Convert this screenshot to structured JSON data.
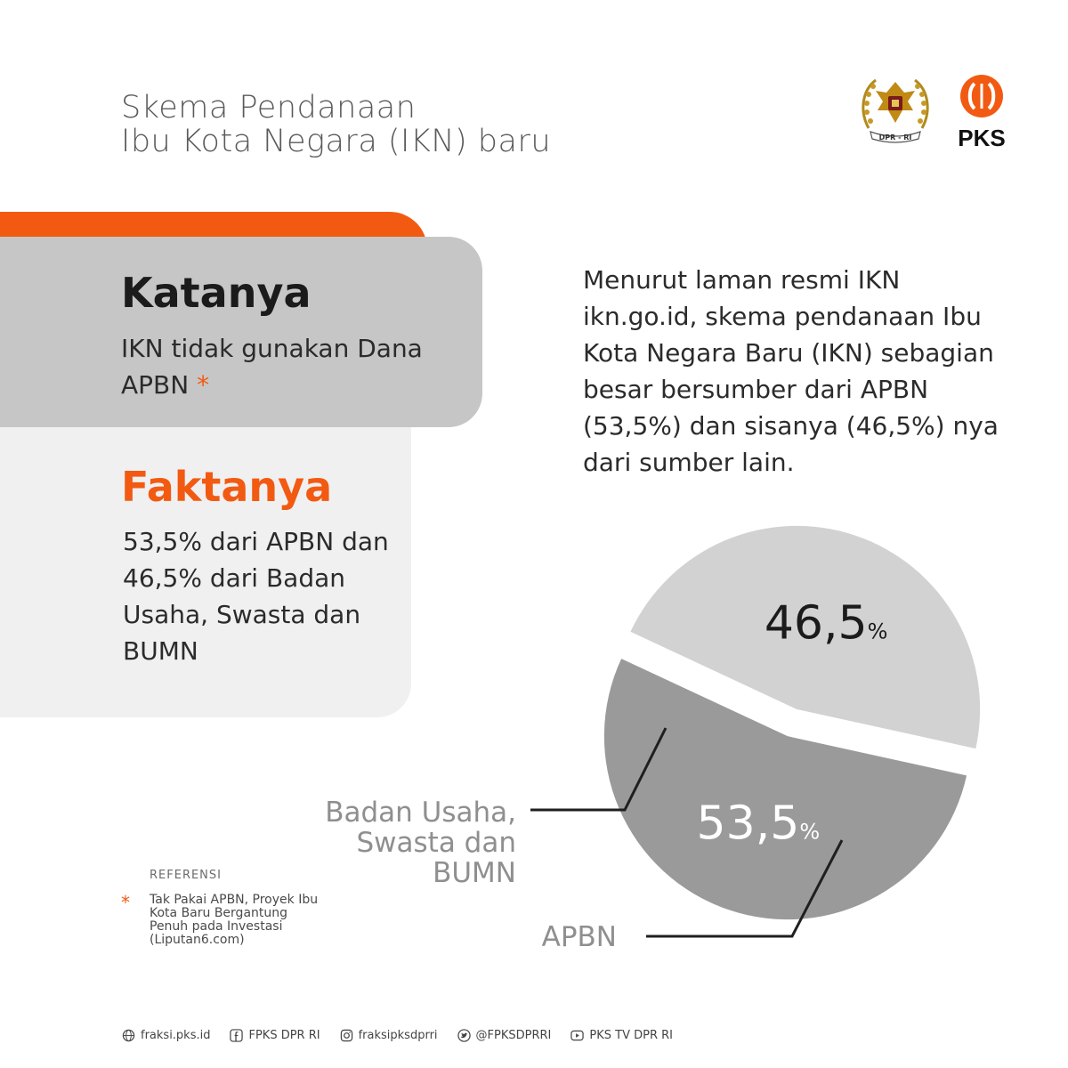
{
  "title": {
    "line1": "Skema Pendanaan",
    "line2": "Ibu Kota Negara (IKN) baru"
  },
  "logos": {
    "dpr": "DPR - RI",
    "pks": "PKS"
  },
  "katanya": {
    "heading": "Katanya",
    "text": "IKN tidak gunakan Dana APBN",
    "asterisk": "*"
  },
  "faktanya": {
    "heading": "Faktanya",
    "text": "53,5% dari APBN dan 46,5% dari Badan Usaha, Swasta dan BUMN"
  },
  "description": "Menurut laman resmi IKN ikn.go.id, skema pendanaan Ibu Kota Negara Baru (IKN) sebagian besar bersumber dari APBN (53,5%) dan sisanya (46,5%) nya dari sumber lain.",
  "chart_data": {
    "type": "pie",
    "title": "",
    "categories": [
      "Badan Usaha, Swasta dan BUMN",
      "APBN"
    ],
    "values": [
      46.5,
      53.5
    ],
    "value_labels": [
      "46,5",
      "53,5"
    ],
    "unit": "%",
    "colors": [
      "#d2d2d2",
      "#9a9a9a"
    ],
    "label_colors": [
      "#1b1b1b",
      "#ffffff"
    ],
    "legend": "none"
  },
  "category_labels": {
    "badan": "Badan Usaha, Swasta dan BUMN",
    "apbn": "APBN"
  },
  "reference": {
    "title": "REFERENSI",
    "star": "*",
    "text": "Tak Pakai APBN, Proyek Ibu Kota Baru Bergantung Penuh pada Investasi (Liputan6.com)"
  },
  "footer": [
    {
      "icon": "globe-icon",
      "text": "fraksi.pks.id"
    },
    {
      "icon": "facebook-icon",
      "text": "FPKS DPR RI"
    },
    {
      "icon": "instagram-icon",
      "text": "fraksipksdprri"
    },
    {
      "icon": "twitter-icon",
      "text": "@FPKSDPRRI"
    },
    {
      "icon": "youtube-icon",
      "text": "PKS TV DPR RI"
    }
  ]
}
